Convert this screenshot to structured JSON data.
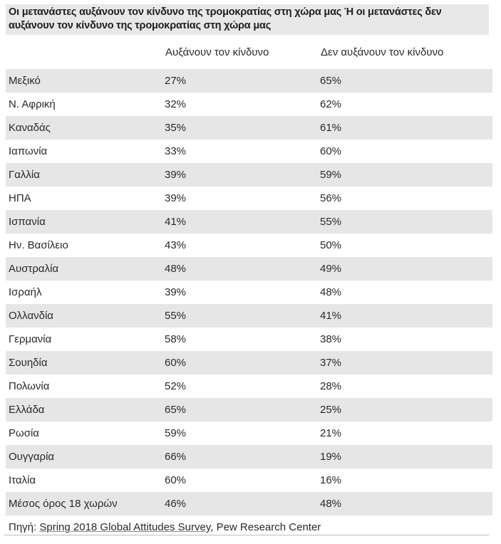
{
  "title": "Οι μετανάστες αυξάνουν τον κίνδυνο της τρομοκρατίας στη χώρα μας Ή οι μετανάστες δεν αυξάνουν τον κίνδυνο της τρομοκρατίας στη χώρα μας",
  "columns": [
    "",
    "Αυξάνουν τον κίνδυνο",
    "Δεν αυξάνουν τον κίνδυνο"
  ],
  "rows": [
    {
      "country": "Μεξικό",
      "increase": "27%",
      "not_increase": "65%"
    },
    {
      "country": "Ν. Αφρική",
      "increase": "32%",
      "not_increase": "62%"
    },
    {
      "country": "Καναδάς",
      "increase": "35%",
      "not_increase": "61%"
    },
    {
      "country": "Ιαπωνία",
      "increase": "33%",
      "not_increase": "60%"
    },
    {
      "country": "Γαλλία",
      "increase": "39%",
      "not_increase": "59%"
    },
    {
      "country": "ΗΠΑ",
      "increase": "39%",
      "not_increase": "56%"
    },
    {
      "country": "Ισπανία",
      "increase": "41%",
      "not_increase": "55%"
    },
    {
      "country": "Ην. Βασίλειο",
      "increase": "43%",
      "not_increase": "50%"
    },
    {
      "country": "Αυστραλία",
      "increase": "48%",
      "not_increase": "49%"
    },
    {
      "country": "Ισραήλ",
      "increase": "39%",
      "not_increase": "48%"
    },
    {
      "country": "Ολλανδία",
      "increase": "55%",
      "not_increase": "41%"
    },
    {
      "country": "Γερμανία",
      "increase": "58%",
      "not_increase": "38%"
    },
    {
      "country": "Σουηδία",
      "increase": "60%",
      "not_increase": "37%"
    },
    {
      "country": "Πολωνία",
      "increase": "52%",
      "not_increase": "28%"
    },
    {
      "country": "Ελλάδα",
      "increase": "65%",
      "not_increase": "25%"
    },
    {
      "country": "Ρωσία",
      "increase": "59%",
      "not_increase": "21%"
    },
    {
      "country": "Ουγγαρία",
      "increase": "66%",
      "not_increase": "19%"
    },
    {
      "country": "Ιταλία",
      "increase": "60%",
      "not_increase": "16%"
    },
    {
      "country": "Μέσος όρος 18 χωρών",
      "increase": "46%",
      "not_increase": "48%"
    }
  ],
  "source": {
    "prefix": "Πηγή: ",
    "link_text": "Spring 2018 Global Attitudes Survey",
    "suffix": ", Pew Research Center"
  },
  "colors": {
    "title_bg": "#e8e8e8",
    "stripe_bg": "#e6e6e6",
    "text": "#2a2a2a"
  }
}
